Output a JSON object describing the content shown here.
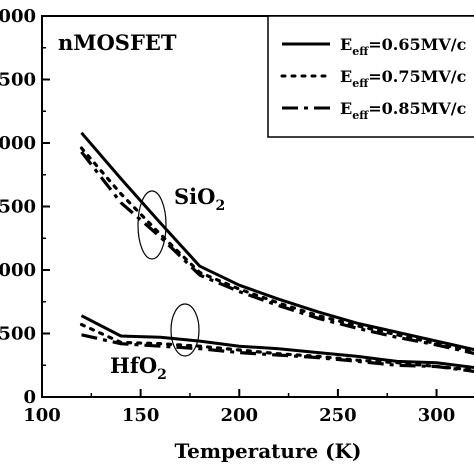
{
  "chart_data": {
    "type": "line",
    "annotation_device": "nMOSFET",
    "xlabel": "Temperature (K)",
    "ylabel": "",
    "xlim": [
      100,
      320
    ],
    "ylim": [
      0,
      3000
    ],
    "x_ticks": [
      "100",
      "150",
      "200",
      "250",
      "300"
    ],
    "y_ticks": [
      "0",
      "500",
      "000",
      "500",
      "000",
      "500",
      "000"
    ],
    "legend_position": "top-right",
    "legend": [
      {
        "prefix": "E",
        "sub": "eff",
        "suffix": "=0.65MV/c",
        "style": "solid"
      },
      {
        "prefix": "E",
        "sub": "eff",
        "suffix": "=0.75MV/c",
        "style": "dot"
      },
      {
        "prefix": "E",
        "sub": "eff",
        "suffix": "=0.85MV/c",
        "style": "dashdot"
      }
    ],
    "groups": [
      {
        "label": "SiO",
        "sub": "2"
      },
      {
        "label": "HfO",
        "sub": "2"
      }
    ],
    "series": [
      {
        "group": "SiO2",
        "style": "solid",
        "x": [
          120,
          140,
          160,
          180,
          200,
          220,
          240,
          260,
          280,
          300,
          320
        ],
        "y": [
          2080,
          1720,
          1370,
          1030,
          880,
          770,
          670,
          580,
          510,
          440,
          370
        ]
      },
      {
        "group": "SiO2",
        "style": "dot",
        "x": [
          120,
          140,
          160,
          180,
          200,
          220,
          240,
          260,
          280,
          300,
          320
        ],
        "y": [
          1960,
          1600,
          1280,
          980,
          850,
          740,
          640,
          560,
          490,
          420,
          355
        ]
      },
      {
        "group": "SiO2",
        "style": "dashdot",
        "x": [
          120,
          140,
          160,
          180,
          200,
          220,
          240,
          260,
          280,
          300,
          320
        ],
        "y": [
          1930,
          1530,
          1260,
          960,
          830,
          720,
          620,
          540,
          470,
          410,
          340
        ]
      },
      {
        "group": "HfO2",
        "style": "solid",
        "x": [
          120,
          140,
          160,
          180,
          200,
          220,
          240,
          260,
          280,
          300,
          320
        ],
        "y": [
          640,
          480,
          470,
          440,
          400,
          380,
          350,
          320,
          280,
          270,
          230
        ]
      },
      {
        "group": "HfO2",
        "style": "dot",
        "x": [
          120,
          140,
          160,
          180,
          200,
          220,
          240,
          260,
          280,
          300,
          320
        ],
        "y": [
          570,
          430,
          420,
          400,
          370,
          340,
          320,
          290,
          270,
          240,
          210
        ]
      },
      {
        "group": "HfO2",
        "style": "dashdot",
        "x": [
          120,
          140,
          160,
          180,
          200,
          220,
          240,
          260,
          280,
          300,
          320
        ],
        "y": [
          490,
          420,
          400,
          380,
          350,
          330,
          310,
          280,
          250,
          240,
          200
        ]
      }
    ]
  }
}
